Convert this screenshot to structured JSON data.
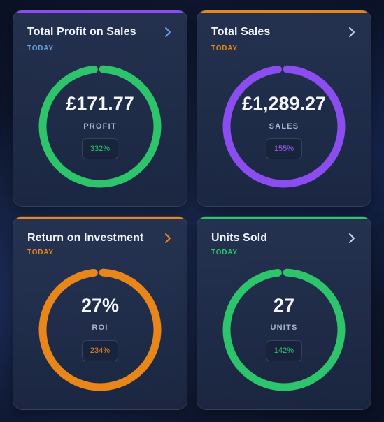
{
  "colors": {
    "purple": "#8b4cf0",
    "green": "#2dc46b",
    "orange": "#e8861a",
    "blue_label": "#6aa1e0"
  },
  "cards": [
    {
      "title": "Total Profit on Sales",
      "period": "TODAY",
      "value": "£171.77",
      "metric": "PROFIT",
      "percent": "332%",
      "accent": "#8b4cf0",
      "ring_color": "#2dc46b",
      "period_color": "#6aa1e0",
      "percent_color": "#2dc46b",
      "chevron_color": "#6aa1e0",
      "icon": "chevron-right-icon"
    },
    {
      "title": "Total Sales",
      "period": "TODAY",
      "value": "£1,289.27",
      "metric": "SALES",
      "percent": "155%",
      "accent": "#e8861a",
      "ring_color": "#8b4cf0",
      "period_color": "#e8861a",
      "percent_color": "#9b5cf5",
      "chevron_color": "#c9d2e4",
      "icon": "chevron-right-icon"
    },
    {
      "title": "Return on Investment",
      "period": "TODAY",
      "value": "27%",
      "metric": "ROI",
      "percent": "234%",
      "accent": "#e8861a",
      "ring_color": "#e8861a",
      "period_color": "#e8861a",
      "percent_color": "#e8861a",
      "chevron_color": "#e8861a",
      "icon": "chevron-right-icon"
    },
    {
      "title": "Units Sold",
      "period": "TODAY",
      "value": "27",
      "metric": "UNITS",
      "percent": "142%",
      "accent": "#2dc46b",
      "ring_color": "#2dc46b",
      "period_color": "#2dc46b",
      "percent_color": "#2dc46b",
      "chevron_color": "#c9d2e4",
      "icon": "chevron-right-icon"
    }
  ]
}
